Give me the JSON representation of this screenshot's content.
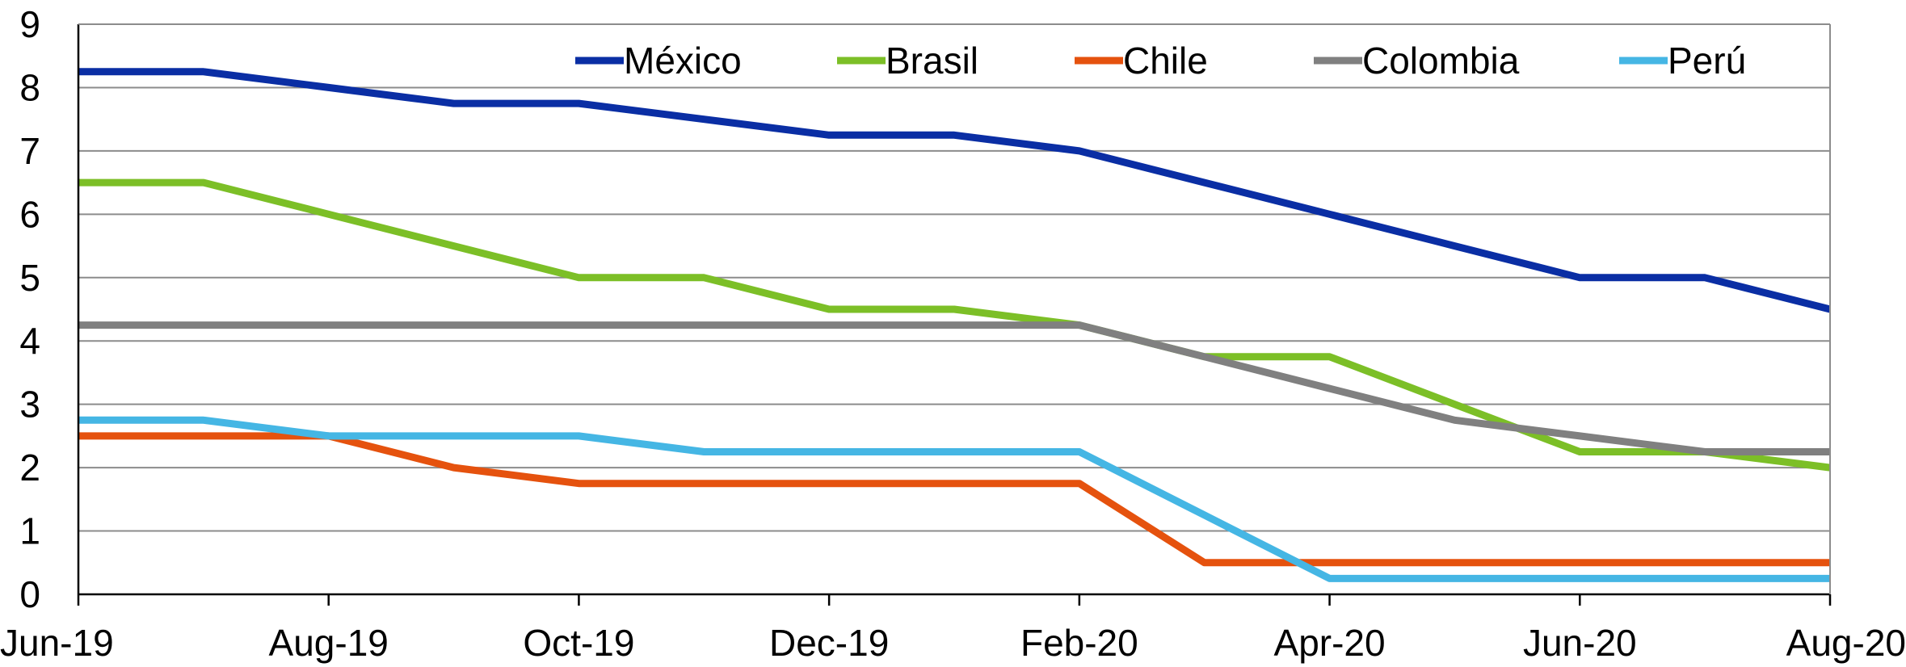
{
  "chart_data": {
    "type": "line",
    "title": "",
    "xlabel": "",
    "ylabel": "",
    "x": [
      "Jun-19",
      "Jul-19",
      "Aug-19",
      "Sep-19",
      "Oct-19",
      "Nov-19",
      "Dec-19",
      "Jan-20",
      "Feb-20",
      "Mar-20",
      "Apr-20",
      "May-20",
      "Jun-20",
      "Jul-20",
      "Aug-20"
    ],
    "x_tick_labels": [
      "Jun-19",
      "Aug-19",
      "Oct-19",
      "Dec-19",
      "Feb-20",
      "Apr-20",
      "Jun-20",
      "Aug-20"
    ],
    "y_ticks": [
      0,
      1,
      2,
      3,
      4,
      5,
      6,
      7,
      8,
      9
    ],
    "ylim": [
      0,
      9
    ],
    "grid": "horizontal",
    "legend_position": "top-right",
    "series": [
      {
        "name": "México",
        "color": "#0a2ea4",
        "values": [
          8.25,
          8.25,
          8.0,
          7.75,
          7.75,
          7.5,
          7.25,
          7.25,
          7.0,
          6.5,
          6.0,
          5.5,
          5.0,
          5.0,
          4.5
        ]
      },
      {
        "name": "Brasil",
        "color": "#7cbf27",
        "values": [
          6.5,
          6.5,
          6.0,
          5.5,
          5.0,
          5.0,
          4.5,
          4.5,
          4.25,
          3.75,
          3.75,
          3.0,
          2.25,
          2.25,
          2.0
        ]
      },
      {
        "name": "Chile",
        "color": "#e5520e",
        "values": [
          2.5,
          2.5,
          2.5,
          2.0,
          1.75,
          1.75,
          1.75,
          1.75,
          1.75,
          0.5,
          0.5,
          0.5,
          0.5,
          0.5,
          0.5
        ]
      },
      {
        "name": "Colombia",
        "color": "#808080",
        "values": [
          4.25,
          4.25,
          4.25,
          4.25,
          4.25,
          4.25,
          4.25,
          4.25,
          4.25,
          3.75,
          3.25,
          2.75,
          2.5,
          2.25,
          2.25
        ]
      },
      {
        "name": "Perú",
        "color": "#45b6e4",
        "values": [
          2.75,
          2.75,
          2.5,
          2.5,
          2.5,
          2.25,
          2.25,
          2.25,
          2.25,
          1.25,
          0.25,
          0.25,
          0.25,
          0.25,
          0.25
        ]
      }
    ]
  }
}
